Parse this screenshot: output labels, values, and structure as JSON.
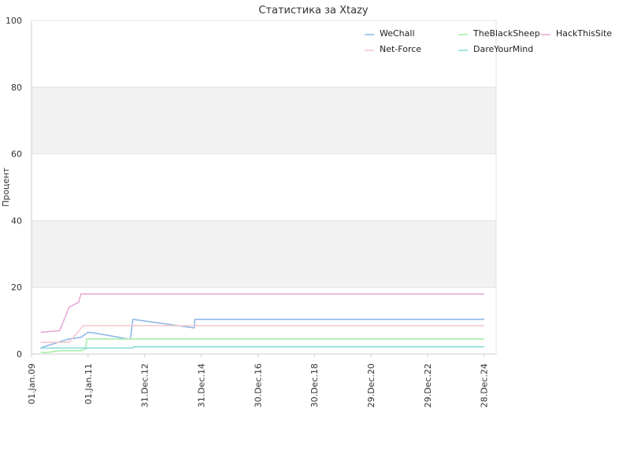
{
  "chart_data": {
    "type": "line",
    "title": "Статистика за Xtazy",
    "ylabel": "Процент",
    "xlabel": "",
    "ylim": [
      0,
      100
    ],
    "yticks": [
      "0",
      "20",
      "40",
      "60",
      "80",
      "100"
    ],
    "xticks": [
      "01.Jan.09",
      "01.Jan.11",
      "31.Dec.12",
      "31.Dec.14",
      "30.Dec.16",
      "30.Dec.18",
      "29.Dec.20",
      "29.Dec.22",
      "28.Dec.24"
    ],
    "xtick_dates": [
      "2009-01-01",
      "2011-01-01",
      "2012-12-31",
      "2014-12-31",
      "2016-12-30",
      "2018-12-30",
      "2020-12-29",
      "2022-12-29",
      "2024-12-28"
    ],
    "xlim": [
      "2009-01-01",
      "2025-06-01"
    ],
    "grid": true,
    "legend_position": "top-right",
    "bands": [
      [
        20,
        40
      ],
      [
        60,
        80
      ]
    ],
    "series": [
      {
        "name": "WeChall",
        "color": "#8fb8e8",
        "points": [
          [
            "2009-05-01",
            1.5
          ],
          [
            "2009-05-15",
            2.0
          ],
          [
            "2010-05-01",
            4.5
          ],
          [
            "2010-10-01",
            5.0
          ],
          [
            "2011-01-01",
            6.5
          ],
          [
            "2011-03-01",
            6.4
          ],
          [
            "2012-06-01",
            4.5
          ],
          [
            "2012-07-01",
            4.6
          ],
          [
            "2012-08-01",
            10.4
          ],
          [
            "2014-10-01",
            7.8
          ],
          [
            "2014-10-10",
            10.4
          ],
          [
            "2025-01-01",
            10.4
          ]
        ]
      },
      {
        "name": "TheBlackSheep",
        "color": "#a8eea8",
        "points": [
          [
            "2009-05-01",
            0.5
          ],
          [
            "2009-08-01",
            0.5
          ],
          [
            "2010-01-01",
            1.0
          ],
          [
            "2010-10-01",
            1.0
          ],
          [
            "2010-12-01",
            1.5
          ],
          [
            "2010-12-15",
            4.5
          ],
          [
            "2025-01-01",
            4.5
          ]
        ]
      },
      {
        "name": "HackThisSite",
        "color": "#e8a8d8",
        "points": [
          [
            "2009-05-01",
            6.5
          ],
          [
            "2010-01-01",
            7.0
          ],
          [
            "2010-05-01",
            14.0
          ],
          [
            "2010-09-01",
            15.5
          ],
          [
            "2010-10-01",
            18.0
          ],
          [
            "2025-01-01",
            18.0
          ]
        ]
      },
      {
        "name": "Net-Force",
        "color": "#f4c8cc",
        "points": [
          [
            "2009-05-01",
            3.5
          ],
          [
            "2010-05-01",
            3.5
          ],
          [
            "2010-11-01",
            8.5
          ],
          [
            "2025-01-01",
            8.5
          ]
        ]
      },
      {
        "name": "DareYourMind",
        "color": "#88dcd8",
        "points": [
          [
            "2009-05-01",
            1.8
          ],
          [
            "2012-08-01",
            1.8
          ],
          [
            "2012-08-15",
            2.2
          ],
          [
            "2025-01-01",
            2.2
          ]
        ]
      }
    ]
  }
}
